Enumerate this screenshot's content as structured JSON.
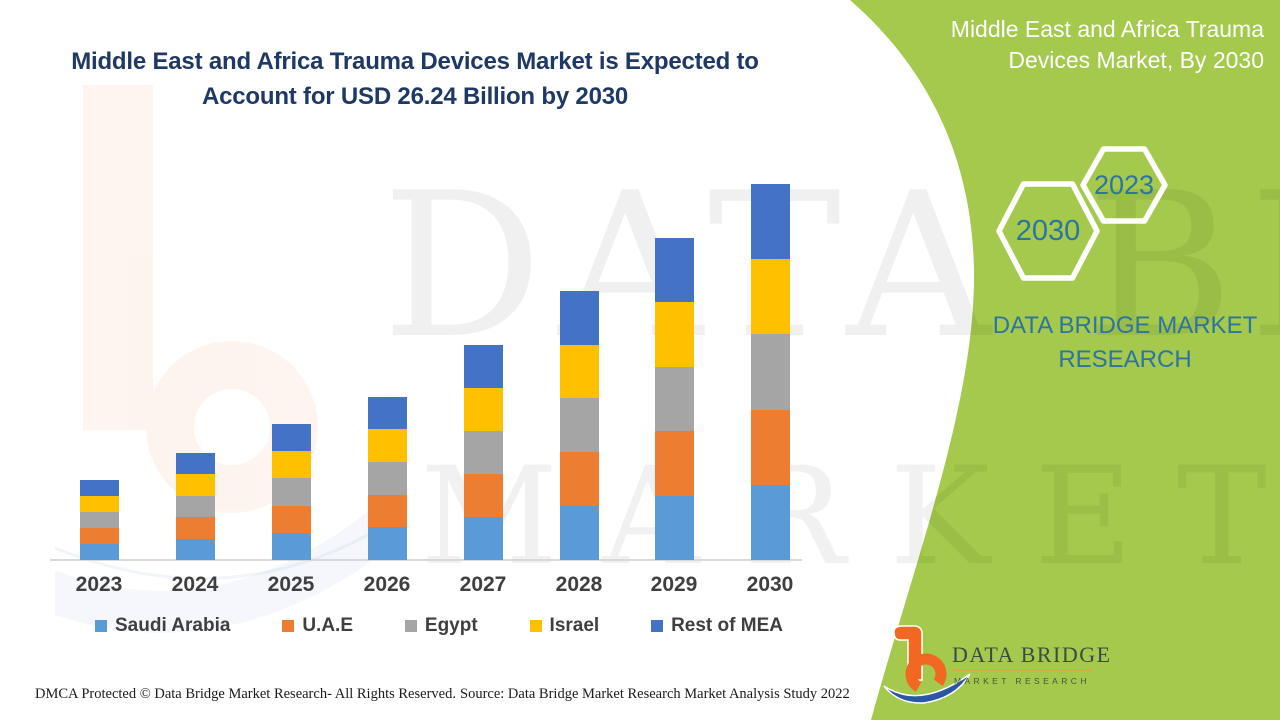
{
  "header": {
    "title_line1": "Middle East and Africa Trauma Devices Market is Expected to",
    "title_line2": "Account for USD 26.24 Billion by 2030",
    "title_color": "#1F3864"
  },
  "side_panel": {
    "title_line1": "Middle East and Africa Trauma",
    "title_line2": "Devices Market, By 2030",
    "hexagon_small_label": "2023",
    "hexagon_large_label": "2030",
    "brand_line1": "DATA BRIDGE MARKET",
    "brand_line2": "RESEARCH",
    "background_color": "#A4C94C",
    "accent_color": "#2E74A0"
  },
  "chart_data": {
    "type": "bar",
    "stacked": true,
    "title": "Middle East and Africa Trauma Devices Market is Expected to Account for USD 26.24 Billion by 2030",
    "unit": "USD Billion",
    "categories": [
      "2023",
      "2024",
      "2025",
      "2026",
      "2027",
      "2028",
      "2029",
      "2030"
    ],
    "series": [
      {
        "name": "Saudi Arabia",
        "color": "#5B9BD5",
        "values": [
          1.12,
          1.5,
          1.9,
          2.28,
          3.0,
          3.76,
          4.5,
          5.25
        ]
      },
      {
        "name": "U.A.E",
        "color": "#ED7D31",
        "values": [
          1.12,
          1.5,
          1.9,
          2.28,
          3.0,
          3.76,
          4.5,
          5.25
        ]
      },
      {
        "name": "Egypt",
        "color": "#A5A5A5",
        "values": [
          1.12,
          1.5,
          1.9,
          2.28,
          3.0,
          3.76,
          4.5,
          5.25
        ]
      },
      {
        "name": "Israel",
        "color": "#FFC000",
        "values": [
          1.12,
          1.5,
          1.9,
          2.28,
          3.0,
          3.76,
          4.5,
          5.25
        ]
      },
      {
        "name": "Rest of MEA",
        "color": "#4472C4",
        "values": [
          1.12,
          1.5,
          1.9,
          2.28,
          3.0,
          3.76,
          4.5,
          5.25
        ]
      }
    ],
    "totals_usd_billion": [
      5.6,
      7.5,
      9.5,
      11.4,
      15.0,
      18.8,
      22.5,
      26.24
    ],
    "highlight_value_2030": "26.24",
    "ylim": [
      0,
      26.24
    ],
    "grid": false,
    "y_axis_visible": false,
    "legend_position": "bottom"
  },
  "watermark": {
    "line1": "DATA BRIDGE",
    "line2": "MARKET RESEARCH"
  },
  "logo": {
    "title": "DATA BRIDGE",
    "subtitle": "MARKET RESEARCH"
  },
  "footer": {
    "dmca": "DMCA Protected © Data Bridge Market Research- All Rights Reserved.",
    "source": "Source: Data Bridge Market Research Market Analysis Study 2022"
  }
}
